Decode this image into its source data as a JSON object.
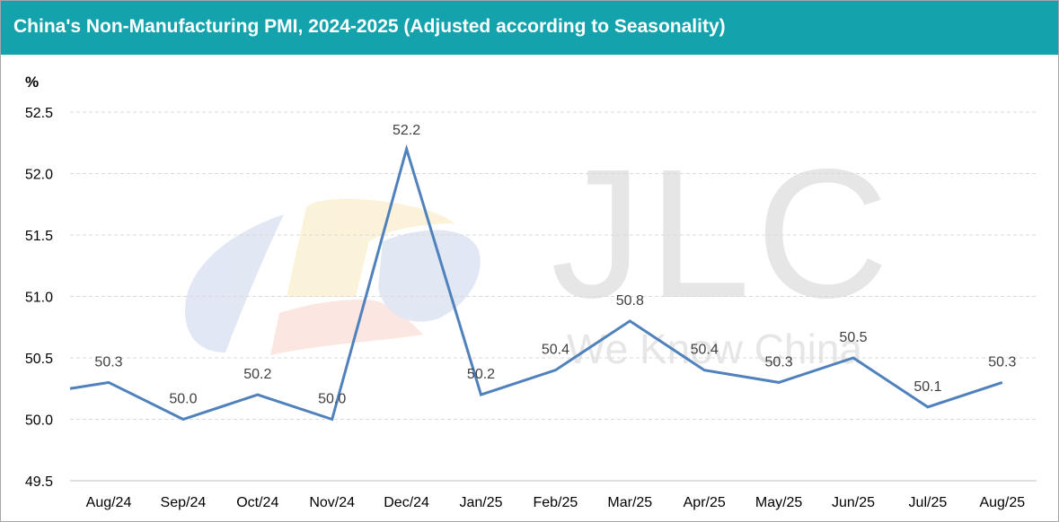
{
  "header": {
    "title": "China's Non-Manufacturing PMI, 2024-2025 (Adjusted according to Seasonality)"
  },
  "watermark": {
    "brand": "JLC",
    "slogan": "We Know China"
  },
  "colors": {
    "title_bar": "#14a3ad",
    "line": "#4f81bd",
    "grid": "#d9d9d9"
  },
  "chart_data": {
    "type": "line",
    "title": "China's Non-Manufacturing PMI, 2024-2025 (Adjusted according to Seasonality)",
    "ylabel": "%",
    "xlabel": "",
    "categories": [
      "Aug/24",
      "Sep/24",
      "Oct/24",
      "Nov/24",
      "Dec/24",
      "Jan/25",
      "Feb/25",
      "Mar/25",
      "Apr/25",
      "May/25",
      "Jun/25",
      "Jul/25",
      "Aug/25"
    ],
    "series": [
      {
        "values": [
          50.3,
          50.0,
          50.2,
          50.0,
          52.2,
          50.2,
          50.4,
          50.8,
          50.4,
          50.3,
          50.5,
          50.1,
          50.3
        ],
        "labels": [
          "50.3",
          "50.0",
          "50.2",
          "50.0",
          "52.2",
          "50.2",
          "50.4",
          "50.8",
          "50.4",
          "50.3",
          "50.5",
          "50.1",
          "50.3"
        ]
      }
    ],
    "line_start_value": 50.25,
    "yticks": [
      "49.5",
      "50.0",
      "50.5",
      "51.0",
      "51.5",
      "52.0",
      "52.5"
    ],
    "ylim": [
      49.5,
      52.5
    ],
    "grid": true,
    "legend": "none"
  }
}
